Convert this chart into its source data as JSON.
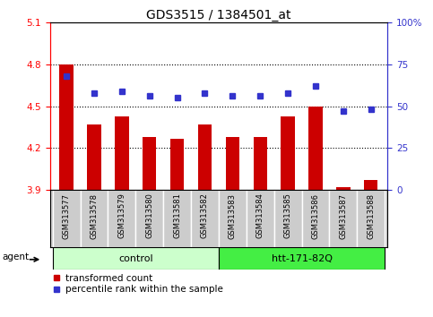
{
  "title": "GDS3515 / 1384501_at",
  "samples": [
    "GSM313577",
    "GSM313578",
    "GSM313579",
    "GSM313580",
    "GSM313581",
    "GSM313582",
    "GSM313583",
    "GSM313584",
    "GSM313585",
    "GSM313586",
    "GSM313587",
    "GSM313588"
  ],
  "red_values": [
    4.8,
    4.37,
    4.43,
    4.28,
    4.27,
    4.37,
    4.28,
    4.28,
    4.43,
    4.5,
    3.92,
    3.97
  ],
  "blue_values": [
    68,
    58,
    59,
    56,
    55,
    58,
    56,
    56,
    58,
    62,
    47,
    48
  ],
  "ylim_left": [
    3.9,
    5.1
  ],
  "ylim_right": [
    0,
    100
  ],
  "yticks_left": [
    3.9,
    4.2,
    4.5,
    4.8,
    5.1
  ],
  "yticks_right": [
    0,
    25,
    50,
    75,
    100
  ],
  "ytick_labels_right": [
    "0",
    "25",
    "50",
    "75",
    "100%"
  ],
  "hlines": [
    4.2,
    4.5,
    4.8
  ],
  "bar_color": "#cc0000",
  "dot_color": "#3333cc",
  "bar_width": 0.5,
  "group_control_color": "#ccffcc",
  "group_htt_color": "#44ee44",
  "agent_label": "agent",
  "legend_red": "transformed count",
  "legend_blue": "percentile rank within the sample",
  "tick_bg_color": "#cccccc"
}
